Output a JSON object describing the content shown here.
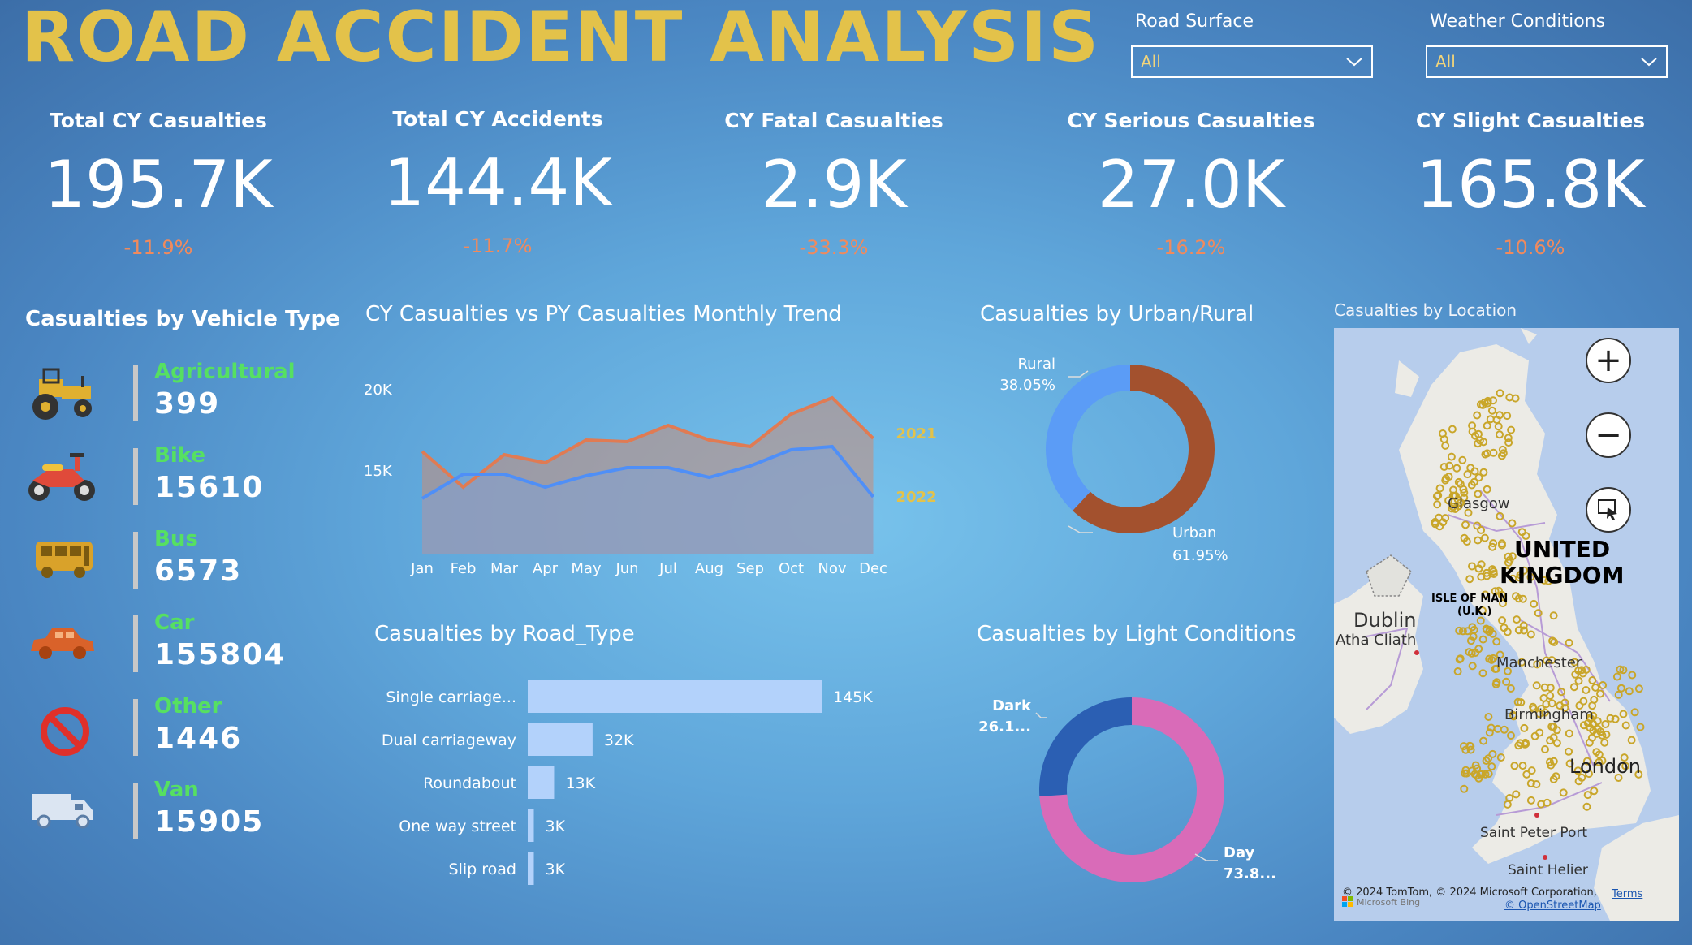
{
  "title": "ROAD ACCIDENT ANALYSIS",
  "filters": [
    {
      "label": "Road Surface",
      "value": "All"
    },
    {
      "label": "Weather Conditions",
      "value": "All"
    }
  ],
  "kpis": [
    {
      "label": "Total CY Casualties",
      "value": "195.7K",
      "change": "-11.9%"
    },
    {
      "label": "Total CY Accidents",
      "value": "144.4K",
      "change": "-11.7%"
    },
    {
      "label": "CY Fatal Casualties",
      "value": "2.9K",
      "change": "-33.3%"
    },
    {
      "label": "CY Serious Casualties",
      "value": "27.0K",
      "change": "-16.2%"
    },
    {
      "label": "CY Slight Casualties",
      "value": "165.8K",
      "change": "-10.6%"
    }
  ],
  "vehicle": {
    "title": "Casualties by Vehicle Type",
    "items": [
      {
        "name": "Agricultural",
        "value": "399",
        "icon": "tractor-icon"
      },
      {
        "name": "Bike",
        "value": "15610",
        "icon": "motorbike-icon"
      },
      {
        "name": "Bus",
        "value": "6573",
        "icon": "bus-icon"
      },
      {
        "name": "Car",
        "value": "155804",
        "icon": "car-icon"
      },
      {
        "name": "Other",
        "value": "1446",
        "icon": "no-entry-icon"
      },
      {
        "name": "Van",
        "value": "15905",
        "icon": "van-icon"
      }
    ]
  },
  "trend_title": "CY Casualties vs PY Casualties Monthly Trend",
  "urban_title": "Casualties by Urban/Rural",
  "road_title": "Casualties by Road_Type",
  "light_title": "Casualties by Light Conditions",
  "map": {
    "title": "Casualties by Location",
    "labels": [
      "Glasgow",
      "UNITED",
      "KINGDOM",
      "ISLE OF MAN",
      "(U.K.)",
      "Dublin",
      "Atha Cliath",
      "Manchester",
      "Birmingham",
      "London",
      "Saint Peter Port",
      "Saint Helier"
    ],
    "copyright": "© 2024 TomTom, © 2024 Microsoft Corporation,",
    "osm": "© OpenStreetMap",
    "terms": "Terms",
    "bing": "Microsoft Bing"
  },
  "chart_data": [
    {
      "type": "area",
      "title": "CY Casualties vs PY Casualties Monthly Trend",
      "categories": [
        "Jan",
        "Feb",
        "Mar",
        "Apr",
        "May",
        "Jun",
        "Jul",
        "Aug",
        "Sep",
        "Oct",
        "Nov",
        "Dec"
      ],
      "ylim": [
        10000,
        22000
      ],
      "yticks": [
        {
          "v": 15000,
          "label": "15K"
        },
        {
          "v": 20000,
          "label": "20K"
        }
      ],
      "series": [
        {
          "name": "2021",
          "values": [
            16200,
            14000,
            16000,
            15500,
            16900,
            16800,
            17800,
            16900,
            16500,
            18500,
            19500,
            17000
          ],
          "color": "#e07b53"
        },
        {
          "name": "2022",
          "values": [
            13300,
            14800,
            14800,
            14000,
            14700,
            15200,
            15200,
            14600,
            15300,
            16300,
            16500,
            13400
          ],
          "color": "#4f8ff7"
        }
      ]
    },
    {
      "type": "pie",
      "title": "Casualties by Urban/Rural",
      "labels": [
        "Urban",
        "Rural"
      ],
      "values": [
        61.95,
        38.05
      ],
      "value_labels": [
        "61.95%",
        "38.05%"
      ],
      "colors": [
        "#a3512e",
        "#5b9cf6"
      ]
    },
    {
      "type": "bar",
      "title": "Casualties by Road_Type",
      "categories": [
        "Single carriage...",
        "Dual carriageway",
        "Roundabout",
        "One way street",
        "Slip road"
      ],
      "values": [
        145000,
        32000,
        13000,
        3000,
        3000
      ],
      "value_labels": [
        "145K",
        "32K",
        "13K",
        "3K",
        "3K"
      ],
      "color": "#b3d2fb"
    },
    {
      "type": "pie",
      "title": "Casualties by Light Conditions",
      "labels": [
        "Day",
        "Dark"
      ],
      "values": [
        73.8,
        26.1
      ],
      "value_labels": [
        "73.8...",
        "26.1..."
      ],
      "colors": [
        "#d96bb8",
        "#2b5fb3"
      ]
    }
  ]
}
